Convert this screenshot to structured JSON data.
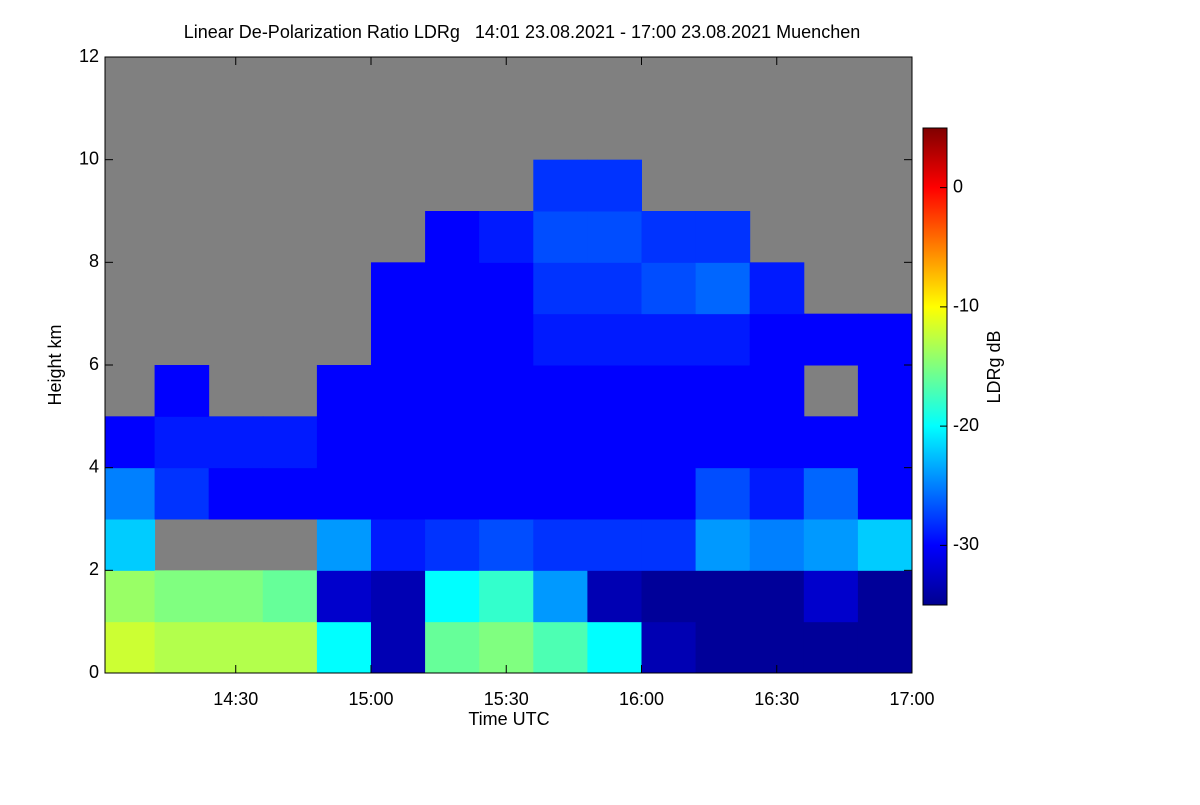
{
  "chart_data": {
    "type": "heatmap",
    "title": "Linear De-Polarization Ratio LDRg   14:01 23.08.2021 - 17:00 23.08.2021 Muenchen",
    "x_label": "Time UTC",
    "y_label": "Height km",
    "colorbar_label": "LDRg dB",
    "xlim": [
      14.0167,
      17.0
    ],
    "xticks": [
      {
        "value": 14.5,
        "label": "14:30"
      },
      {
        "value": 15.0,
        "label": "15:00"
      },
      {
        "value": 15.5,
        "label": "15:30"
      },
      {
        "value": 16.0,
        "label": "16:00"
      },
      {
        "value": 16.5,
        "label": "16:30"
      },
      {
        "value": 17.0,
        "label": "17:00"
      }
    ],
    "ylim": [
      0,
      12
    ],
    "yticks": [
      0,
      2,
      4,
      6,
      8,
      10,
      12
    ],
    "zlim": [
      -35,
      5
    ],
    "zticks": [
      0,
      -10,
      -20,
      -30
    ],
    "x_edges": [
      14.0167,
      14.2,
      14.4,
      14.6,
      14.8,
      15.0,
      15.2,
      15.4,
      15.6,
      15.8,
      16.0,
      16.2,
      16.4,
      16.6,
      16.8,
      17.0
    ],
    "y_edges": [
      0,
      1,
      2,
      3,
      4,
      5,
      6,
      7,
      8,
      9,
      10
    ],
    "values": [
      [
        -12,
        -14,
        -22,
        -25,
        -30,
        null,
        null,
        null,
        null,
        null
      ],
      [
        -13,
        -15,
        null,
        -28,
        -29,
        -30,
        null,
        null,
        null,
        null
      ],
      [
        -13,
        -15,
        null,
        -30,
        -29,
        null,
        null,
        null,
        null,
        null
      ],
      [
        -13,
        -16,
        null,
        -30,
        -29,
        null,
        null,
        null,
        null,
        null
      ],
      [
        -20,
        -32,
        -24,
        -30,
        -30,
        -30,
        null,
        null,
        null,
        null
      ],
      [
        -33,
        -33,
        -29,
        -30,
        -30,
        -30,
        -30,
        -30,
        null,
        null
      ],
      [
        -16,
        -20,
        -28,
        -30,
        -30,
        -30,
        -30,
        -30,
        -30,
        null
      ],
      [
        -15,
        -18,
        -27,
        -30,
        -30,
        -30,
        -30,
        -30,
        -29,
        null
      ],
      [
        -17,
        -24,
        -28,
        -30,
        -30,
        -30,
        -29,
        -28,
        -27,
        -28
      ],
      [
        -20,
        -33,
        -28,
        -30,
        -30,
        -30,
        -29,
        -28,
        -27,
        -28
      ],
      [
        -33,
        -34,
        -28,
        -30,
        -30,
        -30,
        -29,
        -27,
        -28,
        null
      ],
      [
        -34,
        -34,
        -24,
        -27,
        -30,
        -30,
        -29,
        -26,
        -28,
        null
      ],
      [
        -34,
        -34,
        -25,
        -29,
        -30,
        -30,
        -30,
        -29,
        null,
        null
      ],
      [
        -34,
        -32,
        -24,
        -26,
        -30,
        null,
        -30,
        null,
        null,
        null
      ],
      [
        -34,
        -34,
        -22,
        -30,
        -30,
        -30,
        -30,
        null,
        null,
        null
      ]
    ],
    "background": "#808080"
  }
}
